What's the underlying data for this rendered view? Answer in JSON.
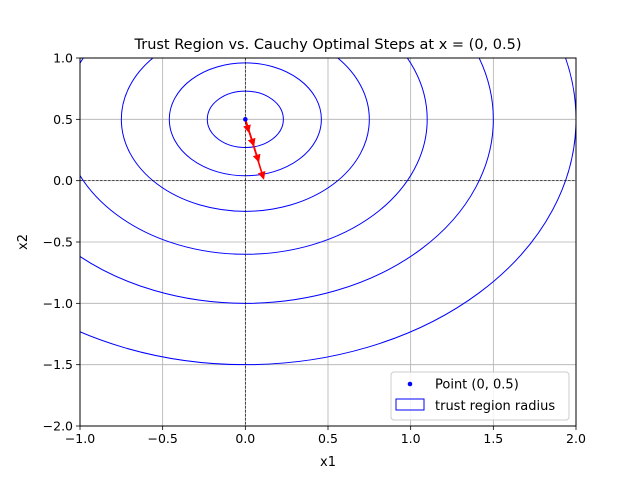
{
  "chart_data": {
    "type": "line",
    "title": "Trust Region vs. Cauchy Optimal Steps at x = (0, 0.5)",
    "xlabel": "x1",
    "ylabel": "x2",
    "xlim": [
      -1.0,
      2.0
    ],
    "ylim": [
      -2.0,
      1.0
    ],
    "x_ticks": [
      -1.0,
      -0.5,
      0.0,
      0.5,
      1.0,
      1.5,
      2.0
    ],
    "x_tick_labels": [
      "−1.0",
      "−0.5",
      "0.0",
      "0.5",
      "1.0",
      "1.5",
      "2.0"
    ],
    "y_ticks": [
      -2.0,
      -1.5,
      -1.0,
      -0.5,
      0.0,
      0.5,
      1.0
    ],
    "y_tick_labels": [
      "−2.0",
      "−1.5",
      "−1.0",
      "−0.5",
      "0.0",
      "0.5",
      "1.0"
    ],
    "grid": true,
    "reference_lines": {
      "x": 0.0,
      "y": 0.0,
      "style": "dashed",
      "color": "#000000"
    },
    "point": {
      "name": "Point (0, 0.5)",
      "x": 0.0,
      "y": 0.5,
      "color": "#0000ff"
    },
    "trust_region_circles": {
      "name": "trust region radius",
      "center": [
        0.0,
        0.5
      ],
      "radii": [
        0.23,
        0.46,
        0.75,
        1.1,
        1.5,
        2.0
      ],
      "color": "#0000ff"
    },
    "steps": {
      "color": "#ff0000",
      "end_points": [
        [
          0.02,
          0.4
        ],
        [
          0.05,
          0.29
        ],
        [
          0.08,
          0.16
        ],
        [
          0.11,
          0.02
        ]
      ]
    },
    "legend": {
      "position": "lower-right",
      "entries": [
        "Point (0, 0.5)",
        "trust region radius"
      ]
    }
  }
}
